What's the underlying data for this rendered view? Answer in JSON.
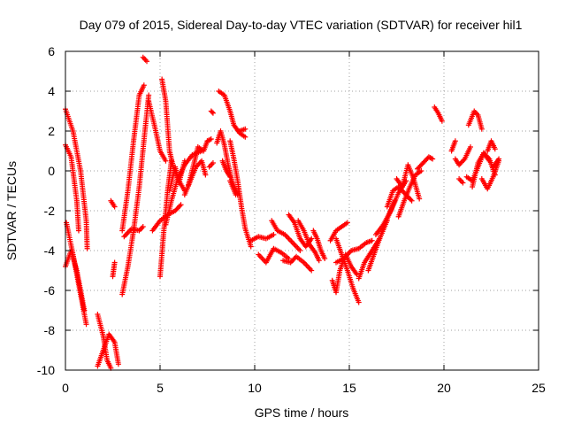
{
  "chart_data": {
    "type": "scatter",
    "title": "Day 079 of 2015, Sidereal Day-to-day VTEC variation (SDTVAR) for receiver hil1",
    "xlabel": "GPS time / hours",
    "ylabel": "SDTVAR / TECUs",
    "xlim": [
      0,
      25
    ],
    "ylim": [
      -10,
      6
    ],
    "xticks": [
      "0",
      "5",
      "10",
      "15",
      "20",
      "25"
    ],
    "yticks": [
      "-10",
      "-8",
      "-6",
      "-4",
      "-2",
      "0",
      "2",
      "4",
      "6"
    ],
    "grid": true,
    "marker": "plus",
    "color": "#ff0000",
    "tracks": [
      [
        [
          0.0,
          3.1
        ],
        [
          0.4,
          2.0
        ],
        [
          0.8,
          0.0
        ],
        [
          1.1,
          -2.5
        ],
        [
          1.15,
          -3.9
        ]
      ],
      [
        [
          0.0,
          1.3
        ],
        [
          0.3,
          0.7
        ],
        [
          0.6,
          -1.5
        ],
        [
          0.7,
          -3.0
        ]
      ],
      [
        [
          0.05,
          -2.6
        ],
        [
          0.4,
          -4.2
        ],
        [
          0.8,
          -6.2
        ],
        [
          1.1,
          -7.7
        ]
      ],
      [
        [
          0.0,
          -4.8
        ],
        [
          0.3,
          -4.0
        ],
        [
          0.6,
          -5.0
        ],
        [
          1.0,
          -7.0
        ]
      ],
      [
        [
          1.7,
          -7.2
        ],
        [
          2.0,
          -8.3
        ],
        [
          2.2,
          -9.5
        ],
        [
          2.4,
          -9.9
        ]
      ],
      [
        [
          1.7,
          -9.8
        ],
        [
          2.0,
          -9.0
        ],
        [
          2.3,
          -8.2
        ],
        [
          2.6,
          -8.6
        ],
        [
          2.8,
          -9.7
        ]
      ],
      [
        [
          2.5,
          -5.3
        ],
        [
          2.6,
          -4.6
        ]
      ],
      [
        [
          2.4,
          -1.5
        ],
        [
          2.6,
          -1.8
        ]
      ],
      [
        [
          3.0,
          -6.2
        ],
        [
          3.3,
          -4.8
        ],
        [
          3.6,
          -3.0
        ],
        [
          3.9,
          -0.8
        ],
        [
          4.2,
          2.0
        ],
        [
          4.4,
          3.8
        ]
      ],
      [
        [
          3.0,
          -3.0
        ],
        [
          3.3,
          -1.0
        ],
        [
          3.6,
          1.5
        ],
        [
          3.9,
          3.8
        ],
        [
          4.15,
          4.3
        ]
      ],
      [
        [
          3.1,
          -3.3
        ],
        [
          3.5,
          -2.9
        ],
        [
          3.9,
          -3.0
        ],
        [
          4.1,
          -2.8
        ]
      ],
      [
        [
          4.1,
          5.7
        ],
        [
          4.3,
          5.5
        ]
      ],
      [
        [
          4.4,
          3.5
        ],
        [
          4.7,
          2.3
        ],
        [
          5.0,
          1.0
        ],
        [
          5.3,
          0.5
        ]
      ],
      [
        [
          4.6,
          -3.0
        ],
        [
          5.0,
          -2.5
        ],
        [
          5.4,
          -2.2
        ],
        [
          5.8,
          -2.0
        ],
        [
          6.1,
          -1.7
        ]
      ],
      [
        [
          5.0,
          -5.3
        ],
        [
          5.2,
          -3.0
        ],
        [
          5.4,
          -1.0
        ],
        [
          5.6,
          0.5
        ]
      ],
      [
        [
          5.1,
          4.6
        ],
        [
          5.3,
          3.5
        ],
        [
          5.5,
          1.0
        ],
        [
          5.7,
          0.2
        ],
        [
          6.0,
          -0.5
        ],
        [
          6.3,
          -1.0
        ]
      ],
      [
        [
          5.3,
          -2.7
        ],
        [
          5.6,
          -1.5
        ],
        [
          5.9,
          -0.5
        ],
        [
          6.3,
          0.3
        ],
        [
          6.7,
          0.8
        ],
        [
          7.2,
          1.0
        ]
      ],
      [
        [
          5.5,
          -1.0
        ],
        [
          5.8,
          0.2
        ],
        [
          6.0,
          -0.6
        ],
        [
          6.3,
          0.5
        ]
      ],
      [
        [
          6.3,
          -1.2
        ],
        [
          6.6,
          -0.5
        ],
        [
          6.9,
          0.2
        ],
        [
          7.2,
          0.5
        ],
        [
          7.4,
          -0.2
        ]
      ],
      [
        [
          6.5,
          -0.7
        ],
        [
          6.8,
          0.4
        ],
        [
          7.0,
          1.2
        ],
        [
          7.3,
          1.0
        ],
        [
          7.5,
          1.5
        ]
      ],
      [
        [
          7.5,
          1.5
        ],
        [
          7.7,
          1.6
        ]
      ],
      [
        [
          7.7,
          3.0
        ],
        [
          7.8,
          2.9
        ]
      ],
      [
        [
          7.6,
          0.2
        ],
        [
          7.8,
          0.4
        ]
      ],
      [
        [
          8.0,
          1.4
        ],
        [
          8.2,
          2.0
        ],
        [
          8.4,
          1.3
        ],
        [
          8.6,
          0.3
        ],
        [
          8.8,
          -0.5
        ],
        [
          9.1,
          -1.2
        ]
      ],
      [
        [
          8.1,
          4.0
        ],
        [
          8.4,
          3.8
        ],
        [
          8.7,
          3.0
        ],
        [
          8.9,
          2.3
        ],
        [
          9.2,
          1.9
        ],
        [
          9.5,
          1.7
        ]
      ],
      [
        [
          8.7,
          1.5
        ],
        [
          8.9,
          0.6
        ],
        [
          9.1,
          -0.5
        ],
        [
          9.3,
          -1.8
        ],
        [
          9.5,
          -2.9
        ],
        [
          9.8,
          -3.8
        ]
      ],
      [
        [
          9.2,
          2.0
        ],
        [
          9.5,
          2.1
        ]
      ],
      [
        [
          8.7,
          -0.5
        ],
        [
          9.0,
          -1.2
        ]
      ],
      [
        [
          9.8,
          -3.5
        ],
        [
          10.2,
          -3.3
        ],
        [
          10.6,
          -3.4
        ],
        [
          11.0,
          -3.2
        ]
      ],
      [
        [
          10.2,
          -4.2
        ],
        [
          10.6,
          -4.6
        ],
        [
          11.0,
          -3.9
        ],
        [
          11.4,
          -4.1
        ],
        [
          11.8,
          -4.4
        ]
      ],
      [
        [
          10.9,
          -2.5
        ],
        [
          11.2,
          -3.0
        ],
        [
          11.6,
          -3.2
        ],
        [
          12.0,
          -3.6
        ],
        [
          12.4,
          -4.0
        ]
      ],
      [
        [
          11.5,
          -4.5
        ],
        [
          11.9,
          -4.6
        ],
        [
          12.2,
          -4.3
        ],
        [
          12.6,
          -4.6
        ],
        [
          13.0,
          -5.0
        ]
      ],
      [
        [
          11.8,
          -2.2
        ],
        [
          12.1,
          -2.6
        ],
        [
          12.4,
          -3.4
        ],
        [
          12.7,
          -3.8
        ],
        [
          13.0,
          -3.4
        ]
      ],
      [
        [
          12.3,
          -2.5
        ],
        [
          12.6,
          -3.0
        ],
        [
          12.9,
          -3.7
        ],
        [
          13.2,
          -4.1
        ],
        [
          13.4,
          -4.5
        ]
      ],
      [
        [
          13.1,
          -3.0
        ],
        [
          13.3,
          -3.4
        ],
        [
          13.5,
          -4.0
        ],
        [
          13.7,
          -4.4
        ]
      ],
      [
        [
          14.0,
          -3.5
        ],
        [
          14.3,
          -3.0
        ],
        [
          14.6,
          -2.8
        ],
        [
          14.9,
          -2.6
        ]
      ],
      [
        [
          14.1,
          -5.5
        ],
        [
          14.3,
          -6.1
        ],
        [
          14.5,
          -5.0
        ],
        [
          14.8,
          -4.2
        ],
        [
          15.1,
          -4.8
        ],
        [
          15.4,
          -5.2
        ]
      ],
      [
        [
          14.3,
          -3.4
        ],
        [
          14.6,
          -4.2
        ],
        [
          14.9,
          -5.0
        ],
        [
          15.2,
          -5.9
        ],
        [
          15.5,
          -6.6
        ]
      ],
      [
        [
          14.3,
          -4.6
        ],
        [
          14.7,
          -4.4
        ],
        [
          15.1,
          -4.0
        ],
        [
          15.5,
          -3.9
        ],
        [
          15.9,
          -3.6
        ],
        [
          16.2,
          -3.5
        ]
      ],
      [
        [
          15.5,
          -5.4
        ],
        [
          15.8,
          -4.6
        ],
        [
          16.2,
          -4.0
        ],
        [
          16.6,
          -3.4
        ],
        [
          17.0,
          -2.5
        ]
      ],
      [
        [
          16.0,
          -5.0
        ],
        [
          16.3,
          -4.2
        ],
        [
          16.6,
          -3.4
        ],
        [
          17.0,
          -2.4
        ],
        [
          17.4,
          -1.5
        ]
      ],
      [
        [
          16.4,
          -3.2
        ],
        [
          16.8,
          -2.7
        ],
        [
          17.2,
          -2.0
        ],
        [
          17.6,
          -1.1
        ],
        [
          18.0,
          -0.5
        ]
      ],
      [
        [
          17.0,
          -1.8
        ],
        [
          17.3,
          -1.0
        ],
        [
          17.6,
          -0.8
        ],
        [
          18.0,
          -1.2
        ],
        [
          18.3,
          -1.5
        ]
      ],
      [
        [
          17.5,
          -0.4
        ],
        [
          17.8,
          -0.8
        ],
        [
          18.1,
          0.3
        ],
        [
          18.4,
          -0.4
        ],
        [
          18.7,
          -1.4
        ]
      ],
      [
        [
          17.6,
          -2.3
        ],
        [
          17.9,
          -1.5
        ],
        [
          18.2,
          -0.8
        ],
        [
          18.5,
          -0.2
        ],
        [
          18.8,
          0.0
        ]
      ],
      [
        [
          18.6,
          0.1
        ],
        [
          18.9,
          0.4
        ],
        [
          19.2,
          0.7
        ],
        [
          19.4,
          0.6
        ]
      ],
      [
        [
          19.5,
          3.2
        ],
        [
          19.7,
          2.9
        ],
        [
          19.9,
          2.5
        ]
      ],
      [
        [
          20.4,
          1.0
        ],
        [
          20.6,
          1.5
        ]
      ],
      [
        [
          20.6,
          0.6
        ],
        [
          20.8,
          0.3
        ],
        [
          21.1,
          0.6
        ],
        [
          21.4,
          1.2
        ]
      ],
      [
        [
          20.8,
          -0.4
        ],
        [
          21.0,
          -0.6
        ]
      ],
      [
        [
          21.2,
          -0.3
        ],
        [
          21.5,
          -0.5
        ],
        [
          21.8,
          0.2
        ],
        [
          22.1,
          0.9
        ],
        [
          22.4,
          0.5
        ]
      ],
      [
        [
          21.3,
          2.3
        ],
        [
          21.6,
          3.0
        ],
        [
          21.8,
          2.8
        ],
        [
          22.0,
          2.1
        ]
      ],
      [
        [
          21.5,
          -0.8
        ],
        [
          21.8,
          0.4
        ],
        [
          22.1,
          0.9
        ],
        [
          22.4,
          0.6
        ],
        [
          22.7,
          -0.2
        ]
      ],
      [
        [
          22.0,
          -0.4
        ],
        [
          22.3,
          -0.9
        ],
        [
          22.6,
          -0.3
        ],
        [
          22.9,
          0.5
        ]
      ],
      [
        [
          22.3,
          1.0
        ],
        [
          22.5,
          1.5
        ],
        [
          22.7,
          1.1
        ]
      ],
      [
        [
          22.6,
          0.2
        ],
        [
          22.9,
          0.6
        ]
      ],
      [
        [
          8.3,
          0.5
        ],
        [
          8.5,
          0.0
        ],
        [
          8.7,
          -0.3
        ]
      ]
    ]
  }
}
